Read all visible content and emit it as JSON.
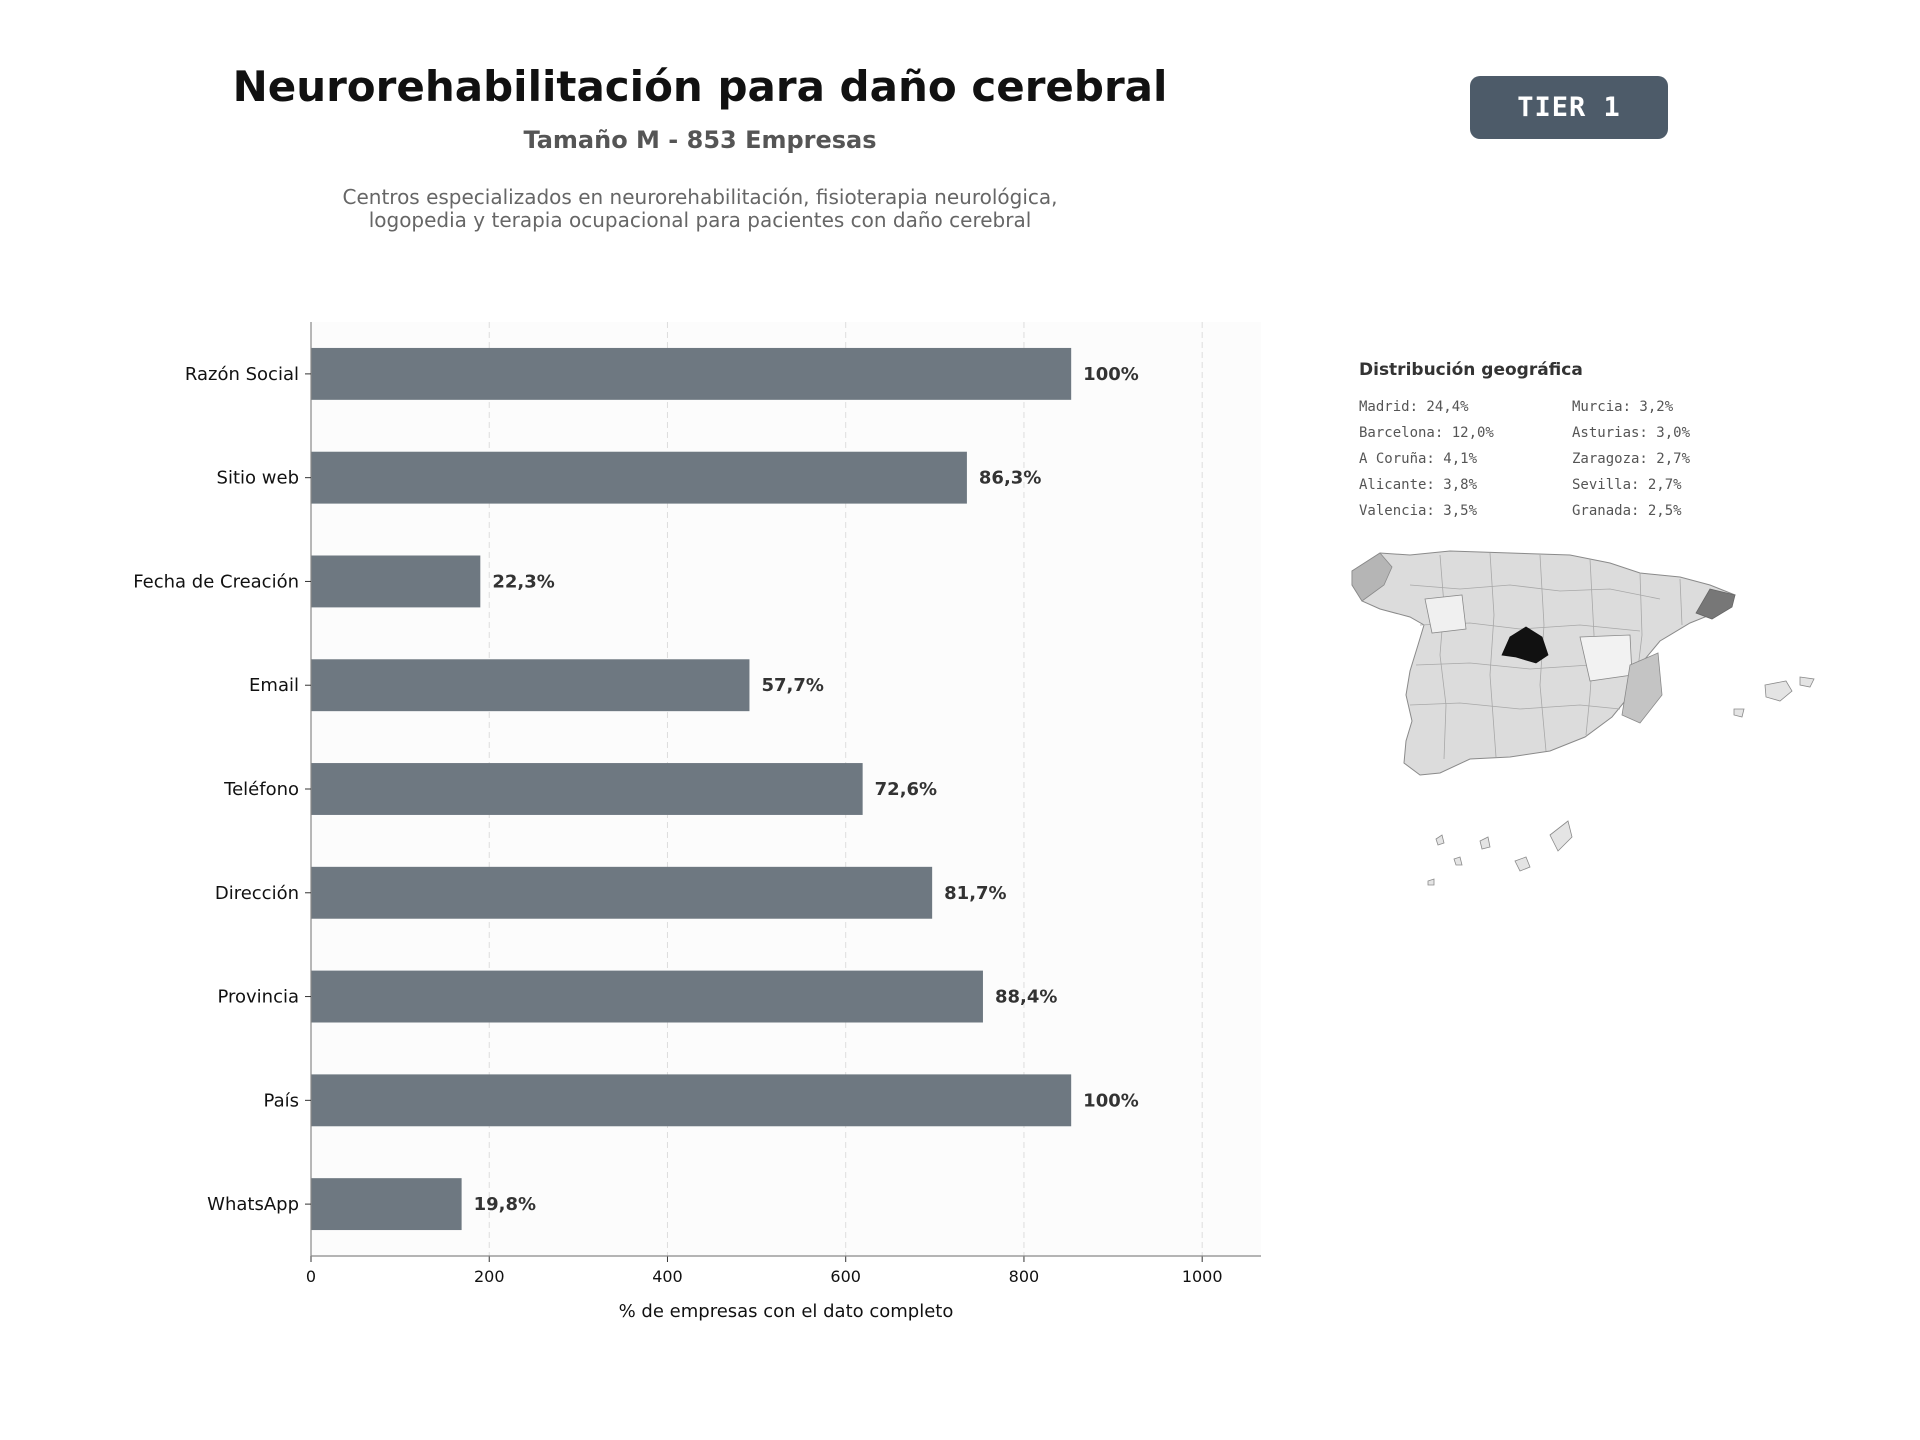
{
  "header": {
    "title": "Neurorehabilitación para daño cerebral",
    "subtitle": "Tamaño M - 853 Empresas",
    "description": "Centros especializados en neurorehabilitación, fisioterapia neurológica, logopedia y terapia ocupacional para pacientes con daño cerebral",
    "tier_label": "TIER 1"
  },
  "colors": {
    "bar": "#6e7881",
    "badge": "#4d5b69",
    "map_highlight": "#111111",
    "map_secondary": "#777777"
  },
  "chart_data": {
    "type": "bar",
    "orientation": "horizontal",
    "categories": [
      "Razón Social",
      "Sitio web",
      "Fecha de Creación",
      "Email",
      "Teléfono",
      "Dirección",
      "Provincia",
      "País",
      "WhatsApp"
    ],
    "values": [
      853,
      736,
      190,
      492,
      619,
      697,
      754,
      853,
      169
    ],
    "value_labels": [
      "100%",
      "86,3%",
      "22,3%",
      "57,7%",
      "72,6%",
      "81,7%",
      "88,4%",
      "100%",
      "19,8%"
    ],
    "xlabel": "% de empresas con el dato completo",
    "xlim": [
      0,
      1066
    ],
    "xticks": [
      "0",
      "200",
      "400",
      "600",
      "800",
      "1000"
    ],
    "grid": "vertical dashed"
  },
  "geo": {
    "title": "Distribución geográfica",
    "items": [
      "Madrid: 24,4%",
      "Murcia: 3,2%",
      "Barcelona: 12,0%",
      "Asturias: 3,0%",
      "A Coruña: 4,1%",
      "Zaragoza: 2,7%",
      "Alicante: 3,8%",
      "Sevilla: 2,7%",
      "Valencia: 3,5%",
      "Granada: 2,5%"
    ],
    "map_icon": "spain-provinces-map-icon"
  }
}
